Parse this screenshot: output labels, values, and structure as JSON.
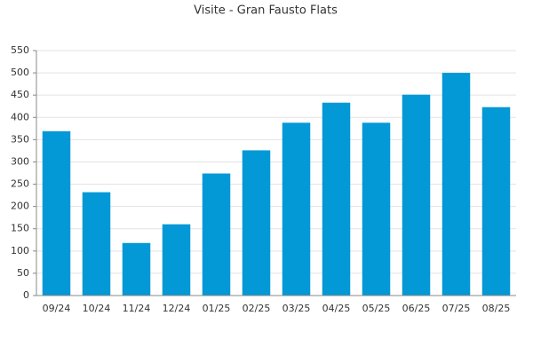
{
  "chart_data": {
    "type": "bar",
    "title": "Visite - Gran Fausto Flats",
    "categories": [
      "09/24",
      "10/24",
      "11/24",
      "12/24",
      "01/25",
      "02/25",
      "03/25",
      "04/25",
      "05/25",
      "06/25",
      "07/25",
      "08/25"
    ],
    "values": [
      369,
      232,
      118,
      160,
      274,
      326,
      388,
      433,
      388,
      451,
      500,
      423
    ],
    "color": "#0398d6",
    "ylim": [
      0,
      550
    ],
    "yticks": [
      0,
      50,
      100,
      150,
      200,
      250,
      300,
      350,
      400,
      450,
      500,
      550
    ],
    "grid": true
  }
}
